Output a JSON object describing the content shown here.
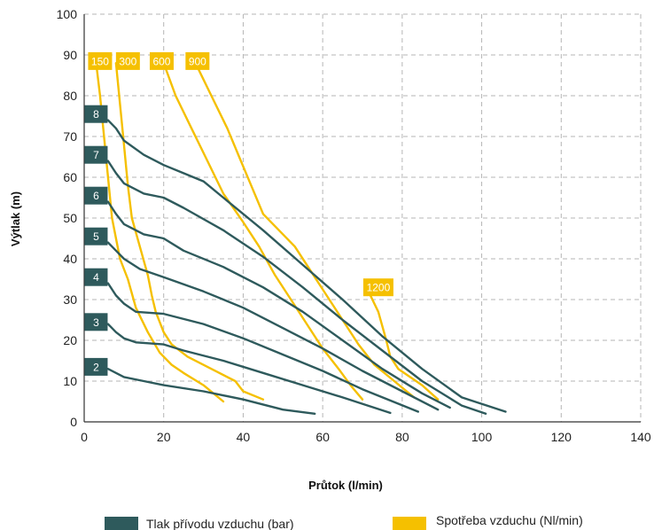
{
  "chart_data": {
    "type": "line",
    "xlabel": "Průtok (l/min)",
    "ylabel": "Výtlak (m)",
    "xlim": [
      0,
      140
    ],
    "ylim": [
      0,
      100
    ],
    "xticks": [
      0,
      20,
      40,
      60,
      80,
      100,
      120,
      140
    ],
    "yticks": [
      0,
      10,
      20,
      30,
      40,
      50,
      60,
      70,
      80,
      90,
      100
    ],
    "grid": true,
    "legend_position": "bottom",
    "colors": {
      "pressure": "#2e5a5c",
      "consumption": "#f5c000"
    },
    "legend": [
      {
        "label": "Tlak přívodu vzduchu (bar)",
        "color": "#2e5a5c"
      },
      {
        "label": "Spotřeba vzduchu (Nl/min)",
        "color": "#f5c000"
      }
    ],
    "pressure_series": [
      {
        "name": "2",
        "points": [
          [
            6,
            13
          ],
          [
            8,
            12
          ],
          [
            10,
            11
          ],
          [
            15,
            10
          ],
          [
            20,
            9
          ],
          [
            30,
            7.5
          ],
          [
            40,
            5.5
          ],
          [
            50,
            3
          ],
          [
            58,
            2
          ]
        ]
      },
      {
        "name": "3",
        "points": [
          [
            6,
            24
          ],
          [
            8,
            22
          ],
          [
            10,
            20.5
          ],
          [
            13,
            19.5
          ],
          [
            20,
            19
          ],
          [
            25,
            17.5
          ],
          [
            35,
            15
          ],
          [
            45,
            12
          ],
          [
            55,
            9
          ],
          [
            65,
            6
          ],
          [
            77,
            2.2
          ]
        ]
      },
      {
        "name": "4",
        "points": [
          [
            6,
            34
          ],
          [
            8,
            31
          ],
          [
            10,
            29
          ],
          [
            13,
            27
          ],
          [
            20,
            26.5
          ],
          [
            30,
            24
          ],
          [
            40,
            20.5
          ],
          [
            50,
            16.5
          ],
          [
            60,
            12.5
          ],
          [
            70,
            8
          ],
          [
            84,
            2.5
          ]
        ]
      },
      {
        "name": "5",
        "points": [
          [
            6,
            44
          ],
          [
            8,
            42
          ],
          [
            10,
            40
          ],
          [
            14,
            37.5
          ],
          [
            20,
            35.5
          ],
          [
            30,
            32
          ],
          [
            40,
            28
          ],
          [
            50,
            23
          ],
          [
            60,
            18
          ],
          [
            70,
            12.5
          ],
          [
            80,
            7.5
          ],
          [
            89,
            3
          ]
        ]
      },
      {
        "name": "6",
        "points": [
          [
            6,
            54
          ],
          [
            8,
            51
          ],
          [
            10,
            48.5
          ],
          [
            15,
            46
          ],
          [
            20,
            45
          ],
          [
            25,
            42
          ],
          [
            35,
            38
          ],
          [
            45,
            33
          ],
          [
            55,
            27
          ],
          [
            65,
            20
          ],
          [
            75,
            13
          ],
          [
            85,
            7
          ],
          [
            92,
            3.5
          ]
        ]
      },
      {
        "name": "7",
        "points": [
          [
            6,
            64
          ],
          [
            8,
            61
          ],
          [
            10,
            58.5
          ],
          [
            15,
            56
          ],
          [
            20,
            55
          ],
          [
            25,
            52.5
          ],
          [
            35,
            47
          ],
          [
            45,
            40.5
          ],
          [
            55,
            33
          ],
          [
            65,
            25
          ],
          [
            75,
            17.5
          ],
          [
            85,
            10
          ],
          [
            95,
            4
          ],
          [
            101,
            2
          ]
        ]
      },
      {
        "name": "8",
        "points": [
          [
            6,
            74
          ],
          [
            8,
            72
          ],
          [
            10,
            69
          ],
          [
            15,
            65.5
          ],
          [
            20,
            63
          ],
          [
            25,
            61
          ],
          [
            30,
            59
          ],
          [
            35,
            55
          ],
          [
            45,
            47
          ],
          [
            55,
            38.5
          ],
          [
            65,
            30
          ],
          [
            75,
            21
          ],
          [
            85,
            13
          ],
          [
            95,
            6
          ],
          [
            106,
            2.5
          ]
        ]
      }
    ],
    "consumption_series": [
      {
        "name": "150",
        "points": [
          [
            3,
            88
          ],
          [
            4,
            80
          ],
          [
            5,
            70
          ],
          [
            6,
            60
          ],
          [
            7,
            50
          ],
          [
            8,
            45
          ],
          [
            9,
            40
          ],
          [
            11,
            35
          ],
          [
            13,
            28
          ],
          [
            16,
            22
          ],
          [
            19,
            17
          ],
          [
            22,
            14
          ],
          [
            25,
            12
          ],
          [
            30,
            9
          ],
          [
            35,
            5
          ]
        ]
      },
      {
        "name": "300",
        "points": [
          [
            8,
            88
          ],
          [
            9,
            78
          ],
          [
            10,
            68
          ],
          [
            11,
            58
          ],
          [
            12,
            50
          ],
          [
            14,
            43
          ],
          [
            16,
            36
          ],
          [
            17,
            31
          ],
          [
            18,
            27
          ],
          [
            20,
            22
          ],
          [
            22,
            19
          ],
          [
            26,
            16
          ],
          [
            32,
            13
          ],
          [
            38,
            10
          ],
          [
            40,
            7.5
          ],
          [
            45,
            5.5
          ]
        ]
      },
      {
        "name": "600",
        "points": [
          [
            20,
            88
          ],
          [
            23,
            80
          ],
          [
            27,
            72
          ],
          [
            31,
            64
          ],
          [
            35,
            56
          ],
          [
            40,
            49
          ],
          [
            44,
            43
          ],
          [
            48,
            36
          ],
          [
            52,
            30
          ],
          [
            56,
            24
          ],
          [
            60,
            18
          ],
          [
            64,
            13
          ],
          [
            67,
            9
          ],
          [
            70,
            5.5
          ]
        ]
      },
      {
        "name": "900",
        "points": [
          [
            28,
            88
          ],
          [
            32,
            80
          ],
          [
            36,
            72
          ],
          [
            39,
            65
          ],
          [
            42,
            58
          ],
          [
            45,
            51
          ],
          [
            49,
            47
          ],
          [
            53,
            43
          ],
          [
            57,
            37
          ],
          [
            61,
            31
          ],
          [
            65,
            25
          ],
          [
            69,
            19
          ],
          [
            73,
            14
          ],
          [
            78,
            10
          ],
          [
            83,
            6
          ]
        ]
      },
      {
        "name": "1200",
        "points": [
          [
            72,
            31
          ],
          [
            74,
            27
          ],
          [
            76,
            20
          ],
          [
            77,
            16
          ],
          [
            79,
            13
          ],
          [
            85,
            9
          ],
          [
            89,
            5.5
          ]
        ]
      }
    ],
    "pressure_tags": [
      {
        "text": "2",
        "y": 13.5
      },
      {
        "text": "3",
        "y": 24.5
      },
      {
        "text": "4",
        "y": 35.5
      },
      {
        "text": "5",
        "y": 45.5
      },
      {
        "text": "6",
        "y": 55.5
      },
      {
        "text": "7",
        "y": 65.5
      },
      {
        "text": "8",
        "y": 75.5
      }
    ],
    "consumption_tags": [
      {
        "text": "150",
        "x": 4,
        "y": 88.5
      },
      {
        "text": "300",
        "x": 11,
        "y": 88.5
      },
      {
        "text": "600",
        "x": 19.5,
        "y": 88.5
      },
      {
        "text": "900",
        "x": 28.5,
        "y": 88.5
      },
      {
        "text": "1200",
        "x": 74,
        "y": 33
      }
    ]
  }
}
